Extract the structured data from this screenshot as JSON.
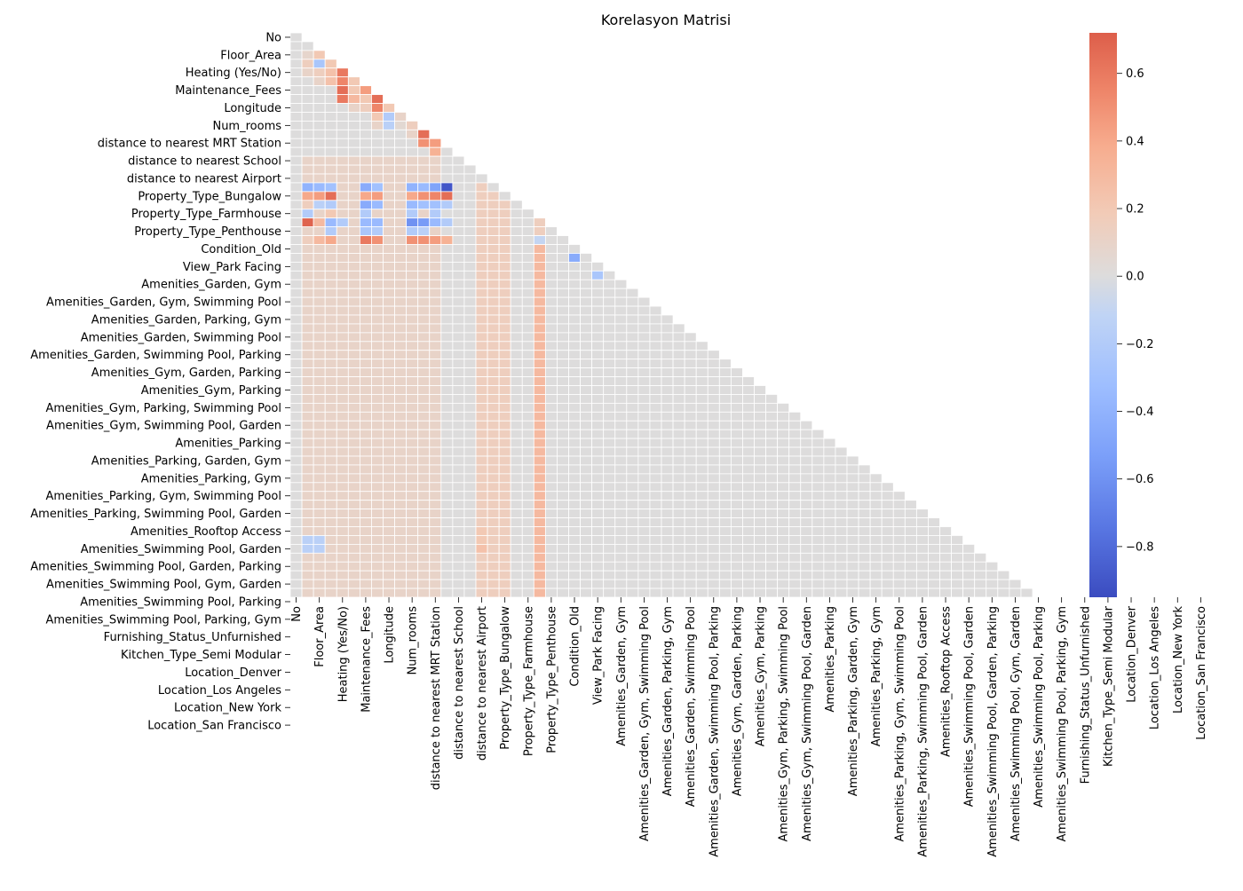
{
  "chart_data": {
    "type": "heatmap",
    "title": "Korelasyon Matrisi",
    "xlabel": "",
    "ylabel": "",
    "mask": "upper-triangle",
    "cell_count": 64,
    "labels": [
      "No",
      "Floor_Area",
      "Heating (Yes/No)",
      "Maintenance_Fees",
      "Longitude",
      "Num_rooms",
      "distance to nearest MRT Station",
      "distance to nearest School",
      "distance to nearest Airport",
      "Property_Type_Bungalow",
      "Property_Type_Farmhouse",
      "Property_Type_Penthouse",
      "Condition_Old",
      "View_Park Facing",
      "Amenities_Garden, Gym",
      "Amenities_Garden, Gym, Swimming Pool",
      "Amenities_Garden, Parking, Gym",
      "Amenities_Garden, Swimming Pool",
      "Amenities_Garden, Swimming Pool, Parking",
      "Amenities_Gym, Garden, Parking",
      "Amenities_Gym, Parking",
      "Amenities_Gym, Parking, Swimming Pool",
      "Amenities_Gym, Swimming Pool, Garden",
      "Amenities_Parking",
      "Amenities_Parking, Garden, Gym",
      "Amenities_Parking, Gym",
      "Amenities_Parking, Gym, Swimming Pool",
      "Amenities_Parking, Swimming Pool, Garden",
      "Amenities_Rooftop Access",
      "Amenities_Swimming Pool, Garden",
      "Amenities_Swimming Pool, Garden, Parking",
      "Amenities_Swimming Pool, Gym, Garden",
      "Amenities_Swimming Pool, Parking",
      "Amenities_Swimming Pool, Parking, Gym",
      "Furnishing_Status_Unfurnished",
      "Kitchen_Type_Semi Modular",
      "Location_Denver",
      "Location_Los Angeles",
      "Location_New York",
      "Location_San Francisco"
    ],
    "label_positions": [
      0,
      2,
      4,
      6,
      8,
      10,
      12,
      14,
      16,
      18,
      20,
      22,
      24,
      26,
      28,
      30,
      32,
      34,
      36,
      38,
      40,
      42,
      44,
      46,
      48,
      50,
      52,
      54,
      56,
      58,
      60,
      62,
      64,
      66,
      68,
      70,
      72,
      74,
      76,
      78
    ],
    "default_value": 0.0,
    "cells": [
      [
        3,
        1,
        0.15
      ],
      [
        4,
        1,
        0.1
      ],
      [
        2,
        1,
        0.08
      ],
      [
        2,
        2,
        0.2
      ],
      [
        3,
        2,
        -0.25
      ],
      [
        4,
        2,
        0.15
      ],
      [
        5,
        2,
        0.1
      ],
      [
        3,
        3,
        0.2
      ],
      [
        4,
        3,
        0.25
      ],
      [
        5,
        3,
        0.25
      ],
      [
        4,
        4,
        0.6
      ],
      [
        5,
        4,
        0.55
      ],
      [
        6,
        4,
        0.65
      ],
      [
        7,
        4,
        0.6
      ],
      [
        5,
        5,
        0.2
      ],
      [
        6,
        5,
        0.2
      ],
      [
        7,
        5,
        0.3
      ],
      [
        8,
        5,
        0.1
      ],
      [
        6,
        6,
        0.45
      ],
      [
        7,
        6,
        0.2
      ],
      [
        8,
        6,
        0.15
      ],
      [
        7,
        7,
        0.65
      ],
      [
        8,
        7,
        0.55
      ],
      [
        9,
        7,
        0.2
      ],
      [
        10,
        7,
        0.1
      ],
      [
        8,
        8,
        0.2
      ],
      [
        9,
        8,
        -0.2
      ],
      [
        10,
        8,
        -0.15
      ],
      [
        9,
        9,
        0.1
      ],
      [
        10,
        9,
        0.05
      ],
      [
        10,
        10,
        0.15
      ],
      [
        11,
        10,
        0.1
      ],
      [
        11,
        11,
        0.65
      ],
      [
        12,
        11,
        0.5
      ],
      [
        12,
        12,
        0.45
      ],
      [
        13,
        12,
        0.35
      ],
      [
        17,
        1,
        -0.4
      ],
      [
        17,
        2,
        -0.35
      ],
      [
        17,
        3,
        -0.3
      ],
      [
        17,
        6,
        -0.45
      ],
      [
        17,
        7,
        -0.3
      ],
      [
        17,
        10,
        -0.4
      ],
      [
        17,
        11,
        -0.35
      ],
      [
        17,
        12,
        -0.5
      ],
      [
        17,
        13,
        -0.9
      ],
      [
        18,
        1,
        0.4
      ],
      [
        18,
        2,
        0.45
      ],
      [
        18,
        3,
        0.65
      ],
      [
        18,
        6,
        0.4
      ],
      [
        18,
        7,
        0.45
      ],
      [
        18,
        10,
        0.4
      ],
      [
        18,
        11,
        0.5
      ],
      [
        18,
        12,
        0.55
      ],
      [
        18,
        13,
        0.65
      ],
      [
        19,
        1,
        0.15
      ],
      [
        19,
        2,
        -0.15
      ],
      [
        19,
        3,
        -0.2
      ],
      [
        19,
        6,
        -0.45
      ],
      [
        19,
        7,
        -0.35
      ],
      [
        19,
        10,
        -0.35
      ],
      [
        19,
        11,
        -0.3
      ],
      [
        19,
        12,
        -0.3
      ],
      [
        19,
        13,
        -0.2
      ],
      [
        20,
        1,
        -0.2
      ],
      [
        20,
        3,
        0.2
      ],
      [
        20,
        6,
        -0.2
      ],
      [
        20,
        10,
        -0.2
      ],
      [
        20,
        12,
        -0.2
      ],
      [
        21,
        1,
        0.7
      ],
      [
        21,
        2,
        0.3
      ],
      [
        21,
        3,
        -0.35
      ],
      [
        21,
        4,
        -0.2
      ],
      [
        21,
        6,
        -0.35
      ],
      [
        21,
        7,
        -0.35
      ],
      [
        21,
        10,
        -0.6
      ],
      [
        21,
        11,
        -0.55
      ],
      [
        21,
        12,
        -0.35
      ],
      [
        21,
        13,
        -0.2
      ],
      [
        22,
        1,
        0.1
      ],
      [
        22,
        3,
        -0.2
      ],
      [
        22,
        6,
        -0.25
      ],
      [
        22,
        7,
        -0.2
      ],
      [
        22,
        10,
        -0.2
      ],
      [
        22,
        11,
        -0.15
      ],
      [
        23,
        1,
        0.15
      ],
      [
        23,
        2,
        0.3
      ],
      [
        23,
        3,
        0.4
      ],
      [
        23,
        6,
        0.6
      ],
      [
        23,
        7,
        0.5
      ],
      [
        23,
        10,
        0.5
      ],
      [
        23,
        11,
        0.5
      ],
      [
        23,
        12,
        0.45
      ],
      [
        23,
        13,
        0.35
      ],
      [
        17,
        21,
        -0.55
      ],
      [
        18,
        21,
        0.3
      ],
      [
        19,
        21,
        0.2
      ],
      [
        20,
        21,
        0.15
      ],
      [
        21,
        21,
        0.15
      ],
      [
        22,
        21,
        0.15
      ],
      [
        23,
        21,
        -0.1
      ],
      [
        25,
        24,
        -0.45
      ],
      [
        27,
        26,
        -0.25
      ],
      [
        56,
        16,
        0.2
      ],
      [
        57,
        16,
        0.2
      ],
      [
        58,
        16,
        0.25
      ],
      [
        68,
        66,
        -0.6
      ],
      [
        70,
        68,
        -0.5
      ],
      [
        71,
        5,
        0.35
      ],
      [
        71,
        6,
        0.25
      ],
      [
        71,
        7,
        0.2
      ],
      [
        72,
        5,
        0.15
      ],
      [
        72,
        7,
        -0.2
      ],
      [
        73,
        5,
        -0.4
      ],
      [
        73,
        7,
        -0.25
      ],
      [
        74,
        5,
        -0.6
      ],
      [
        74,
        6,
        -0.5
      ],
      [
        74,
        7,
        0.45
      ],
      [
        75,
        5,
        -0.45
      ],
      [
        75,
        7,
        0.6
      ],
      [
        76,
        5,
        0.15
      ],
      [
        76,
        7,
        -0.3
      ],
      [
        77,
        5,
        0.2
      ],
      [
        77,
        7,
        -0.35
      ],
      [
        78,
        5,
        0.65
      ],
      [
        78,
        6,
        0.55
      ],
      [
        78,
        7,
        -0.4
      ]
    ],
    "bands": [
      {
        "rows": [
          14,
          70
        ],
        "cols": [
          1,
          12
        ],
        "value": 0.1
      },
      {
        "rows": [
          14,
          70
        ],
        "cols": [
          16,
          18
        ],
        "value": 0.15
      },
      {
        "rows": [
          14,
          70
        ],
        "cols": [
          21,
          21
        ],
        "value": 0.3
      },
      {
        "rows": [
          57,
          58
        ],
        "cols": [
          1,
          2
        ],
        "value": -0.15
      },
      {
        "rows": [
          69,
          70
        ],
        "cols": [
          1,
          2
        ],
        "value": -0.2
      },
      {
        "rows": [
          69,
          70
        ],
        "cols": [
          24,
          25
        ],
        "value": -0.2
      },
      {
        "rows": [
          71,
          78
        ],
        "cols": [
          13,
          13
        ],
        "value": -0.05
      },
      {
        "rows": [
          72,
          78
        ],
        "cols": [
          72,
          78
        ],
        "value": -0.15
      }
    ],
    "colorbar": {
      "colormap": "coolwarm",
      "vmin": -0.95,
      "vmax": 0.72,
      "ticks": [
        "0.6",
        "0.4",
        "0.2",
        "0.0",
        "−0.2",
        "−0.4",
        "−0.6",
        "−0.8"
      ],
      "tick_values": [
        0.6,
        0.4,
        0.2,
        0.0,
        -0.2,
        -0.4,
        -0.6,
        -0.8
      ]
    }
  }
}
